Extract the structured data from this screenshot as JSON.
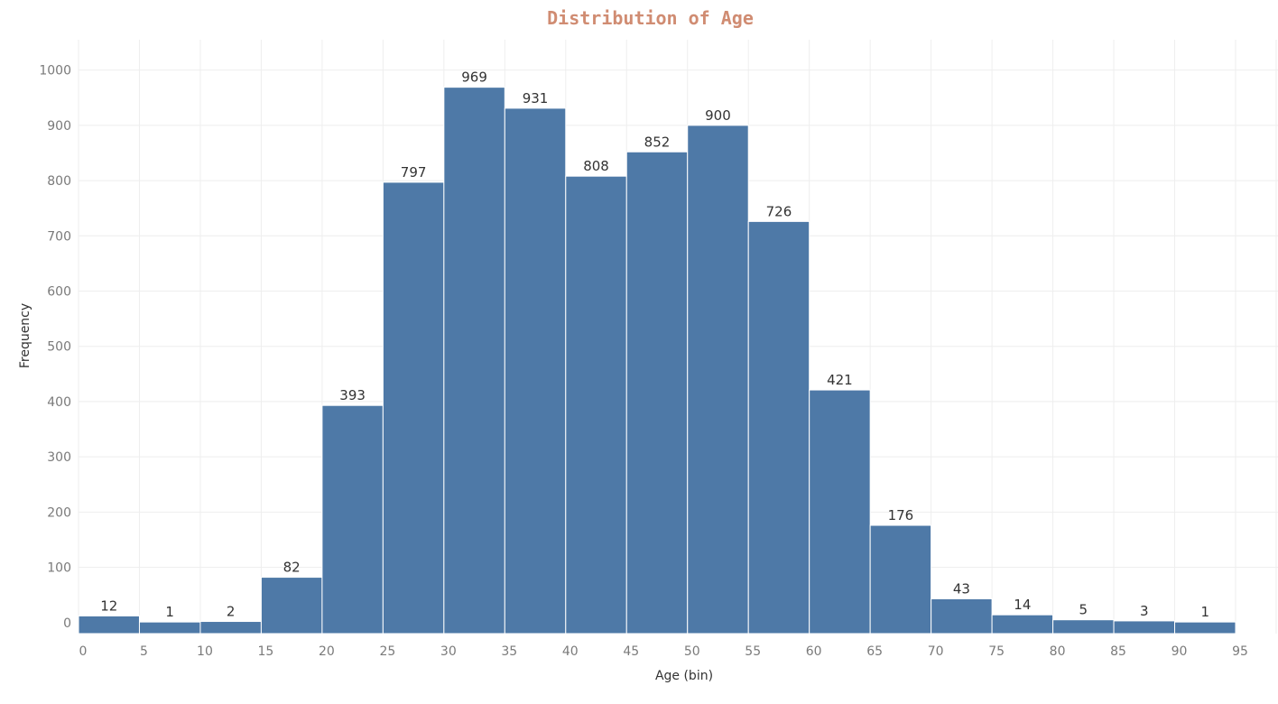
{
  "chart_data": {
    "type": "bar",
    "title": "Distribution of Age",
    "xlabel": "Age (bin)",
    "ylabel": "Frequency",
    "bin_width": 5,
    "x_ticks": [
      0,
      5,
      10,
      15,
      20,
      25,
      30,
      35,
      40,
      45,
      50,
      55,
      60,
      65,
      70,
      75,
      80,
      85,
      90,
      95
    ],
    "bins": [
      0,
      5,
      10,
      15,
      20,
      25,
      30,
      35,
      40,
      45,
      50,
      55,
      60,
      65,
      70,
      75,
      80,
      85,
      90
    ],
    "values": [
      12,
      1,
      2,
      82,
      393,
      797,
      969,
      931,
      808,
      852,
      900,
      726,
      421,
      176,
      43,
      14,
      5,
      3,
      1
    ],
    "y_ticks": [
      0,
      100,
      200,
      300,
      400,
      500,
      600,
      700,
      800,
      900,
      1000
    ],
    "xlim": [
      0,
      95
    ],
    "ylim": [
      -20,
      1055
    ],
    "grid": true,
    "colors": {
      "bar": "#4e79a7",
      "title": "#d08c72",
      "grid": "#eeeeee"
    }
  }
}
